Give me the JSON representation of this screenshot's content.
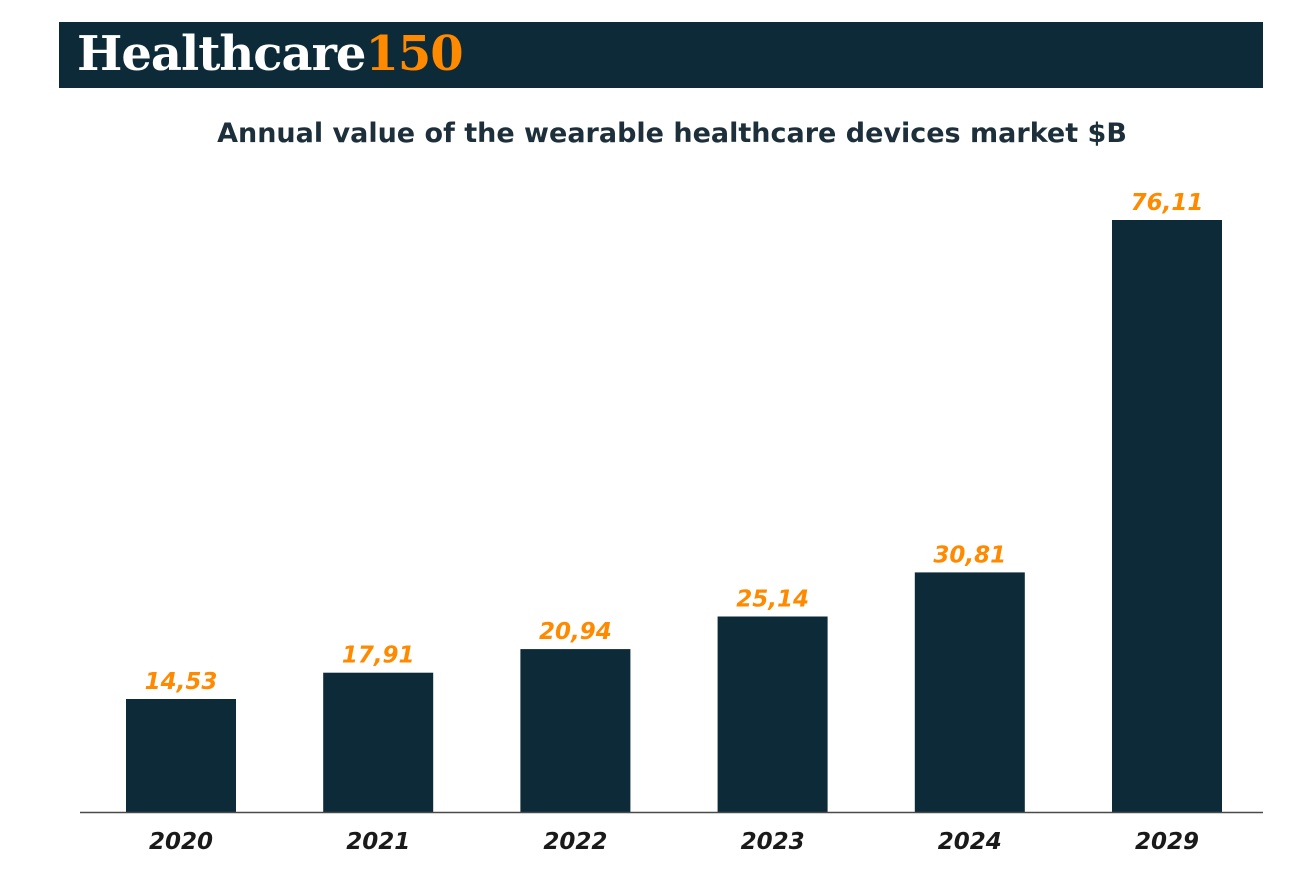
{
  "brand": {
    "word": "Healthcare",
    "number": "150",
    "background_color": "#0c2a37",
    "number_color": "#ff8a00"
  },
  "chart_data": {
    "type": "bar",
    "title": "Annual value of the wearable healthcare devices market $B",
    "categories": [
      "2020",
      "2021",
      "2022",
      "2023",
      "2024",
      "2029"
    ],
    "values": [
      14.53,
      17.91,
      20.94,
      25.14,
      30.81,
      76.11
    ],
    "data_labels": [
      "14,53",
      "17,91",
      "20,94",
      "25,14",
      "30,81",
      "76,11"
    ],
    "bar_color": "#0c2a37",
    "label_color": "#ff8a00",
    "ylim": [
      0,
      76.11
    ],
    "grid": false,
    "legend": "none"
  }
}
